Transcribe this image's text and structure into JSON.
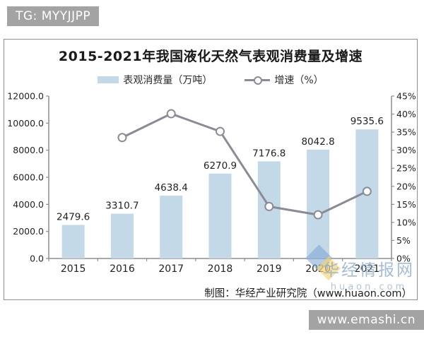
{
  "badges": {
    "top": "TG: MYYJJPP",
    "bottom": "www.emashi.cn"
  },
  "chart": {
    "title": "2015-2021年我国液化天然气表观消费量及增速",
    "legend": [
      {
        "label": "表观消费量（万吨）"
      },
      {
        "label": "增速（%）"
      }
    ],
    "caption": "制图：华经产业研究院（www.huaon.com）",
    "watermark": {
      "line1": "华经情报网",
      "line2": "huaon.com"
    }
  },
  "colors": {
    "bar": "#c3d9e7",
    "line": "#8b8b96",
    "axis": "#8a8f94",
    "text": "#222222",
    "badge_bg": "#a3a3a3"
  },
  "chart_data": {
    "type": "bar",
    "title": "2015-2021年我国液化天然气表观消费量及增速",
    "categories": [
      "2015",
      "2016",
      "2017",
      "2018",
      "2019",
      "2020",
      "2021"
    ],
    "series": [
      {
        "name": "表观消费量（万吨）",
        "type": "bar",
        "axis": "left",
        "values": [
          2479.6,
          3310.7,
          4638.4,
          6270.9,
          7176.8,
          8042.8,
          9535.6
        ],
        "color": "#c3d9e7",
        "data_labels": true
      },
      {
        "name": "增速（%）",
        "type": "line",
        "axis": "right",
        "values": [
          null,
          33.5,
          40.1,
          35.2,
          14.4,
          12.1,
          18.6
        ],
        "color": "#8b8b96",
        "marker": "circle-open"
      }
    ],
    "left_axis": {
      "min": 0,
      "max": 12000,
      "step": 2000,
      "tick_format": "one-decimal"
    },
    "right_axis": {
      "min": 0,
      "max": 45,
      "step": 5,
      "tick_format": "percent"
    },
    "grid": false,
    "legend_position": "top"
  }
}
